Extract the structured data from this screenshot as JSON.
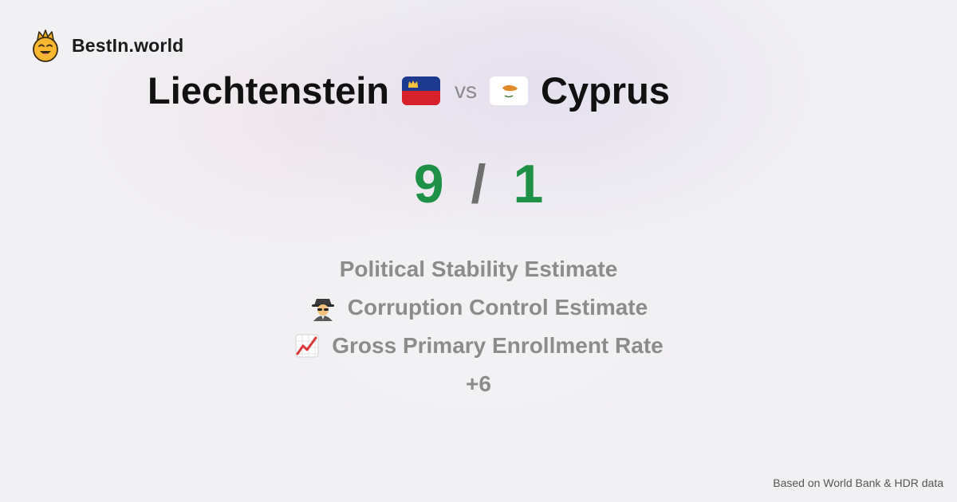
{
  "brand": {
    "name": "BestIn.world",
    "logo_icon": "crowned-smiley-icon"
  },
  "comparison": {
    "country_a": {
      "name": "Liechtenstein",
      "flag_icon": "liechtenstein-flag-icon"
    },
    "vs_label": "vs",
    "country_b": {
      "name": "Cyprus",
      "flag_icon": "cyprus-flag-icon"
    }
  },
  "score": {
    "a": "9",
    "separator": "/",
    "b": "1",
    "color": "#1f9146"
  },
  "metrics": [
    {
      "label": "Political Stability Estimate",
      "icon": ""
    },
    {
      "label": "Corruption Control Estimate",
      "icon": "detective-icon"
    },
    {
      "label": "Gross Primary Enrollment Rate",
      "icon": "chart-increasing-icon"
    }
  ],
  "more_label": "+6",
  "footer": {
    "source": "Based on World Bank & HDR data"
  }
}
